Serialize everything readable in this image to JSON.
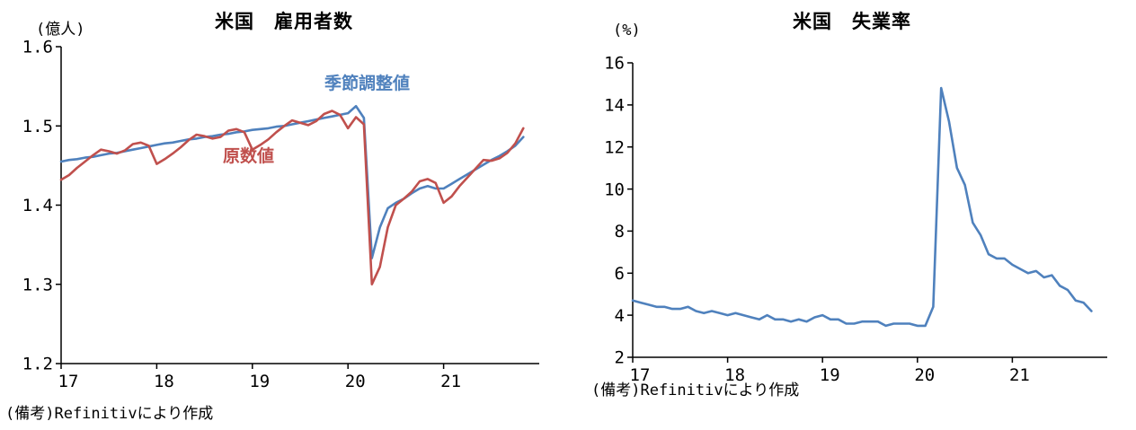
{
  "chart_data": [
    {
      "type": "line",
      "title": "米国　雇用者数",
      "unit_label": "(億人)",
      "note": "(備考)Refinitivにより作成",
      "xlim": [
        2017,
        2022
      ],
      "ylim": [
        1.2,
        1.6
      ],
      "x_start": 2017,
      "x_step": 0.0833333,
      "grid": false,
      "legend": "inline-annotations",
      "xticks": [
        2017,
        2018,
        2019,
        2020,
        2021
      ],
      "xtick_labels": [
        "17",
        "18",
        "19",
        "20",
        "21"
      ],
      "yticks": [
        1.2,
        1.3,
        1.4,
        1.5,
        1.6
      ],
      "ytick_labels": [
        "1.2",
        "1.3",
        "1.4",
        "1.5",
        "1.6"
      ],
      "series": [
        {
          "id": "seasonally-adjusted",
          "name": "季節調整値",
          "color": "#4f81bd",
          "values": [
            1.455,
            1.457,
            1.458,
            1.46,
            1.461,
            1.463,
            1.465,
            1.466,
            1.468,
            1.47,
            1.472,
            1.474,
            1.476,
            1.478,
            1.479,
            1.481,
            1.483,
            1.484,
            1.486,
            1.487,
            1.489,
            1.49,
            1.492,
            1.493,
            1.495,
            1.496,
            1.497,
            1.499,
            1.5,
            1.502,
            1.504,
            1.506,
            1.508,
            1.51,
            1.512,
            1.514,
            1.516,
            1.525,
            1.51,
            1.333,
            1.372,
            1.396,
            1.403,
            1.408,
            1.415,
            1.421,
            1.424,
            1.421,
            1.421,
            1.427,
            1.433,
            1.439,
            1.445,
            1.451,
            1.457,
            1.462,
            1.468,
            1.475,
            1.486
          ]
        },
        {
          "id": "raw",
          "name": "原数値",
          "color": "#c0504d",
          "values": [
            1.432,
            1.438,
            1.447,
            1.455,
            1.463,
            1.47,
            1.468,
            1.465,
            1.469,
            1.477,
            1.479,
            1.475,
            1.452,
            1.458,
            1.465,
            1.473,
            1.482,
            1.489,
            1.487,
            1.484,
            1.486,
            1.494,
            1.496,
            1.492,
            1.47,
            1.476,
            1.483,
            1.492,
            1.5,
            1.507,
            1.504,
            1.501,
            1.506,
            1.515,
            1.519,
            1.514,
            1.497,
            1.511,
            1.502,
            1.3,
            1.322,
            1.372,
            1.4,
            1.408,
            1.417,
            1.43,
            1.433,
            1.428,
            1.403,
            1.411,
            1.424,
            1.435,
            1.446,
            1.457,
            1.456,
            1.459,
            1.466,
            1.478,
            1.497
          ]
        }
      ],
      "annotations": [
        {
          "text": "季節調整値",
          "x": 2020.2,
          "y": 1.547,
          "color": "#4f81bd"
        },
        {
          "text": "原数値",
          "x": 2018.96,
          "y": 1.455,
          "color": "#c0504d"
        }
      ]
    },
    {
      "type": "line",
      "title": "米国　失業率",
      "unit_label": "(%)",
      "note": "(備考)Refinitivにより作成",
      "xlim": [
        2017,
        2022
      ],
      "ylim": [
        2,
        16
      ],
      "x_start": 2017,
      "x_step": 0.0833333,
      "grid": false,
      "legend": "none",
      "xticks": [
        2017,
        2018,
        2019,
        2020,
        2021
      ],
      "xtick_labels": [
        "17",
        "18",
        "19",
        "20",
        "21"
      ],
      "yticks": [
        2,
        4,
        6,
        8,
        10,
        12,
        14,
        16
      ],
      "ytick_labels": [
        "2",
        "4",
        "6",
        "8",
        "10",
        "12",
        "14",
        "16"
      ],
      "series": [
        {
          "id": "unemployment-rate",
          "name": "失業率",
          "color": "#4f81bd",
          "values": [
            4.7,
            4.6,
            4.5,
            4.4,
            4.4,
            4.3,
            4.3,
            4.4,
            4.2,
            4.1,
            4.2,
            4.1,
            4.0,
            4.1,
            4.0,
            3.9,
            3.8,
            4.0,
            3.8,
            3.8,
            3.7,
            3.8,
            3.7,
            3.9,
            4.0,
            3.8,
            3.8,
            3.6,
            3.6,
            3.7,
            3.7,
            3.7,
            3.5,
            3.6,
            3.6,
            3.6,
            3.5,
            3.5,
            4.4,
            14.8,
            13.2,
            11.0,
            10.2,
            8.4,
            7.8,
            6.9,
            6.7,
            6.7,
            6.4,
            6.2,
            6.0,
            6.1,
            5.8,
            5.9,
            5.4,
            5.2,
            4.7,
            4.6,
            4.2
          ]
        }
      ],
      "annotations": []
    }
  ]
}
